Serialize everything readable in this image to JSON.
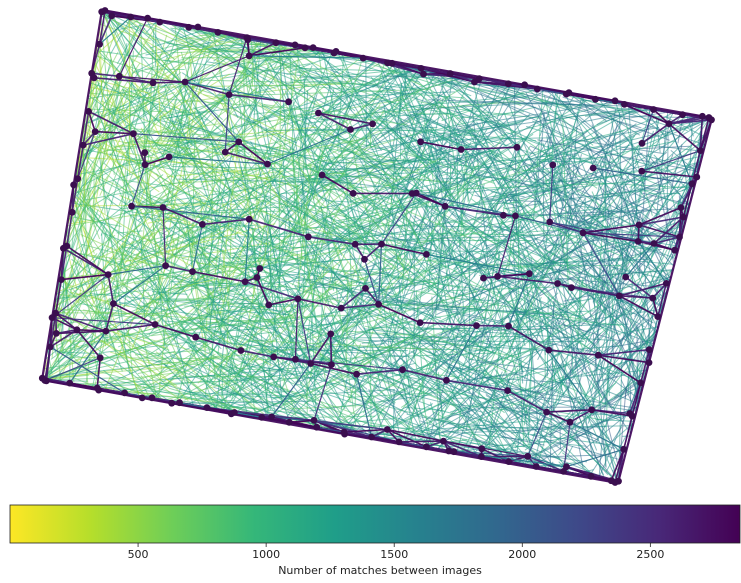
{
  "colormap": {
    "name": "viridis_r",
    "stops": [
      "#fde725",
      "#b5de2b",
      "#6ece58",
      "#35b779",
      "#1f9e89",
      "#26828e",
      "#31688e",
      "#3e4989",
      "#482878",
      "#440154"
    ],
    "node_color": "#3b0f4f",
    "min": 0,
    "max": 2850
  },
  "colorbar": {
    "label": "Number of matches between images",
    "ticks": [
      {
        "value": 500,
        "label": "500"
      },
      {
        "value": 1000,
        "label": "1000"
      },
      {
        "value": 1500,
        "label": "1500"
      },
      {
        "value": 2000,
        "label": "2000"
      },
      {
        "value": 2500,
        "label": "2500"
      }
    ]
  }
}
